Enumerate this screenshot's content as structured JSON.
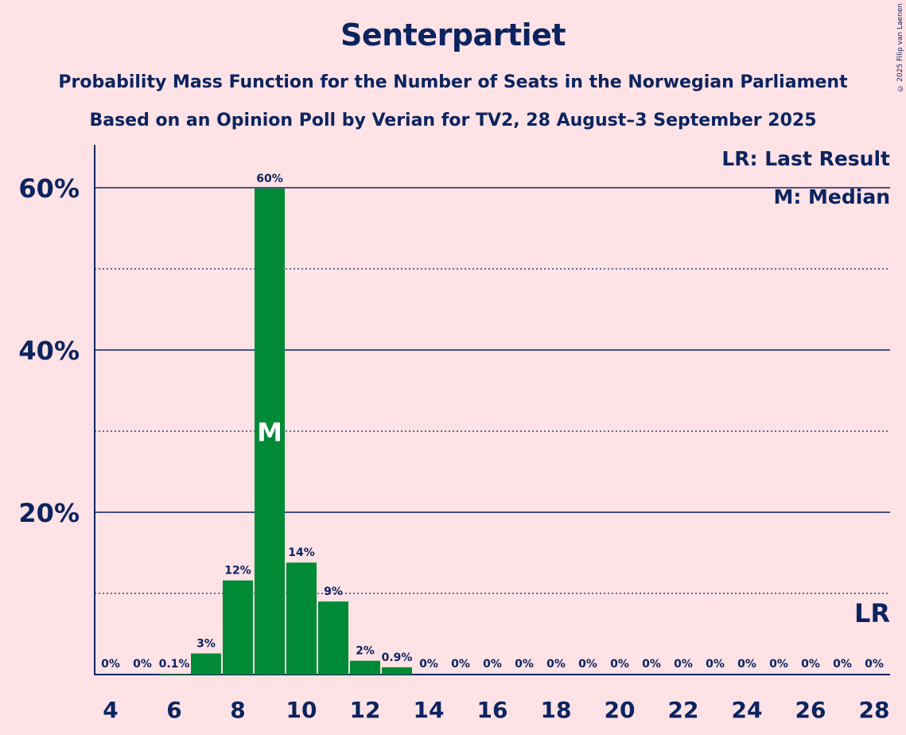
{
  "colors": {
    "background": "#FFE2E5",
    "bar": "#008A35",
    "text": "#0B2460"
  },
  "copyright": "© 2025 Filip van Laenen",
  "chart_data": {
    "type": "bar",
    "title": "Senterpartiet",
    "subtitle": "Probability Mass Function for the Number of Seats in the Norwegian Parliament",
    "subtitle2": "Based on an Opinion Poll by Verian for TV2, 28 August–3 September 2025",
    "legend": [
      "LR: Last Result",
      "M: Median"
    ],
    "legend_position": "top-right",
    "x": [
      4,
      5,
      6,
      7,
      8,
      9,
      10,
      11,
      12,
      13,
      14,
      15,
      16,
      17,
      18,
      19,
      20,
      21,
      22,
      23,
      24,
      25,
      26,
      27,
      28
    ],
    "values": [
      0,
      0,
      0.1,
      2.6,
      11.6,
      59.9,
      13.8,
      9.0,
      1.7,
      0.9,
      0,
      0,
      0,
      0,
      0,
      0,
      0,
      0,
      0,
      0,
      0,
      0,
      0,
      0,
      0
    ],
    "labels": [
      "0%",
      "0%",
      "0.1%",
      "3%",
      "12%",
      "60%",
      "14%",
      "9%",
      "2%",
      "0.9%",
      "0%",
      "0%",
      "0%",
      "0%",
      "0%",
      "0%",
      "0%",
      "0%",
      "0%",
      "0%",
      "0%",
      "0%",
      "0%",
      "0%",
      "0%"
    ],
    "x_ticks": [
      "4",
      "6",
      "8",
      "10",
      "12",
      "14",
      "16",
      "18",
      "20",
      "22",
      "24",
      "26",
      "28"
    ],
    "y_ticks": [
      "20%",
      "40%",
      "60%"
    ],
    "ylim": [
      0,
      65
    ],
    "xlim": [
      3.5,
      28.5
    ],
    "grid": "solid at 20% steps, dotted at 10% steps",
    "median": 9,
    "median_label": "M",
    "last_result": 28,
    "last_result_label": "LR"
  }
}
